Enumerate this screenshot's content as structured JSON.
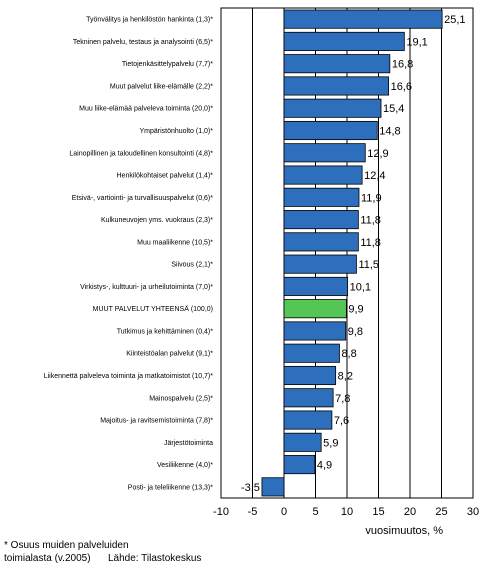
{
  "chart_data": {
    "type": "bar",
    "orientation": "horizontal",
    "categories": [
      "Työnvälitys ja henkilöstön hankinta (1,3)*",
      "Tekninen palvelu, testaus ja analysointi (6,5)*",
      "Tietojenkäsittelypalvelu (7,7)*",
      "Muut palvelut liike-elämälle (2,2)*",
      "Muu liike-elämää palveleva toiminta (20,0)*",
      "Ympäristönhuolto (1,0)*",
      "Lainopillinen ja taloudellinen konsultointi (4,8)*",
      "Henkilökohtaiset palvelut (1,4)*",
      "Etsivä-, vartiointi- ja turvallisuuspalvelut (0,6)*",
      "Kulkuneuvojen yms. vuokraus (2,3)*",
      "Muu maaliikenne (10,5)*",
      "Siivous (2,1)*",
      "Virkistys-, kulttuuri- ja urheilutoiminta (7,0)*",
      "MUUT PALVELUT YHTEENSÄ (100,0)",
      "Tutkimus ja kehittäminen (0,4)*",
      "Kiinteistöalan palvelut (9,1)*",
      "Liikennettä palveleva toiminta ja matkatoimistot (10,7)*",
      "Mainospalvelu (2,5)*",
      "Majoitus- ja ravitsemistoiminta (7,8)*",
      "Järjestötoiminta",
      "Vesiliikenne (4,0)*",
      "Posti- ja teleliikenne (13,3)*"
    ],
    "values": [
      25.1,
      19.1,
      16.8,
      16.6,
      15.4,
      14.8,
      12.9,
      12.4,
      11.9,
      11.8,
      11.8,
      11.5,
      10.1,
      9.9,
      9.8,
      8.8,
      8.2,
      7.8,
      7.6,
      5.9,
      4.9,
      -3.5
    ],
    "value_labels": [
      "25,1",
      "19,1",
      "16,8",
      "16,6",
      "15,4",
      "14,8",
      "12,9",
      "12,4",
      "11,9",
      "11,8",
      "11,8",
      "11,5",
      "10,1",
      "9,9",
      "9,8",
      "8,8",
      "8,2",
      "7,8",
      "7,6",
      "5,9",
      "4,9",
      "-3,5"
    ],
    "highlight_index": 13,
    "xlim": [
      -10,
      30
    ],
    "xticks": [
      -10,
      -5,
      0,
      5,
      10,
      15,
      20,
      25,
      30
    ],
    "xlabel": "vuosimuutos, %",
    "title": "",
    "grid": "vertical",
    "colors": {
      "bar": "#2e6fbd",
      "highlight": "#55c655",
      "border": "#000000",
      "grid": "#000000"
    }
  },
  "footnote": {
    "line1": "* Osuus muiden palveluiden",
    "line2": "toimialasta (v.2005)",
    "source": "Lähde: Tilastokeskus"
  }
}
